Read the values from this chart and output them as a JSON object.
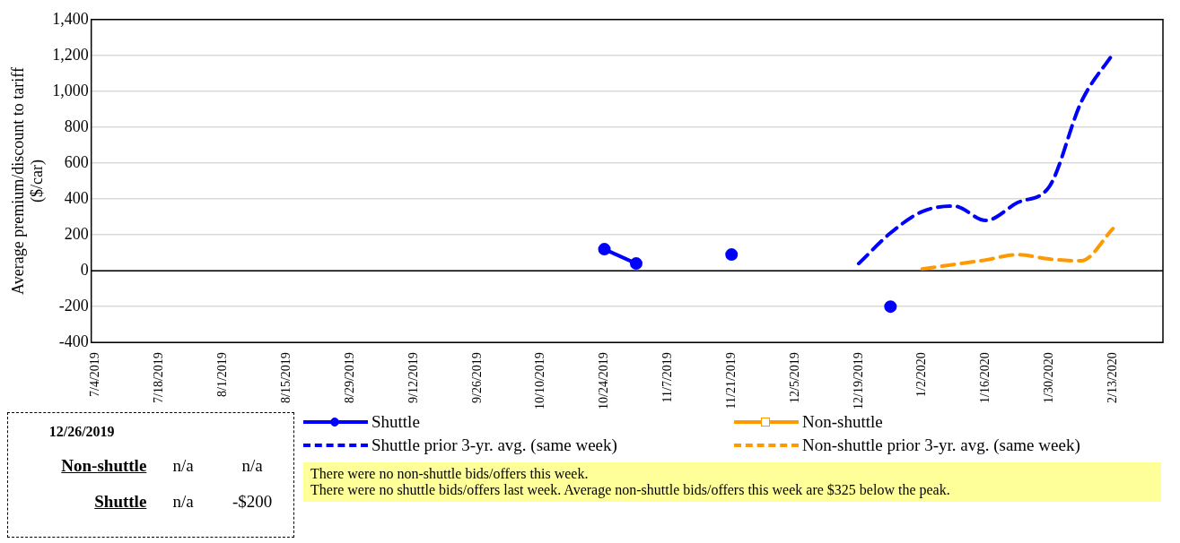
{
  "chart_data": [
    {
      "type": "line",
      "ylabel": "Average premium/discount to tariff ($/car)",
      "x": [
        "2019-10-24",
        "2019-10-31",
        "2019-11-07",
        "2019-11-14",
        "2019-11-21",
        "2019-11-28",
        "2019-12-05",
        "2019-12-12",
        "2019-12-19",
        "2019-12-26",
        "2020-01-02",
        "2020-01-09",
        "2020-01-16",
        "2020-01-23",
        "2020-01-30",
        "2020-02-06",
        "2020-02-13"
      ],
      "series": [
        {
          "name": "Shuttle",
          "color": "#0000ff",
          "marker": "circle",
          "line_style": "solid",
          "values": [
            120,
            40,
            null,
            null,
            90,
            null,
            null,
            null,
            null,
            -200,
            null,
            null,
            null,
            null,
            null,
            null,
            null
          ]
        },
        {
          "name": "Non-shuttle",
          "color": "#ff9900",
          "marker": "square",
          "line_style": "solid",
          "values": [
            null,
            null,
            null,
            null,
            null,
            null,
            null,
            null,
            null,
            null,
            null,
            null,
            null,
            null,
            null,
            null,
            null
          ]
        },
        {
          "name": "Shuttle prior 3-yr. avg. (same week)",
          "color": "#0000ff",
          "marker": "none",
          "line_style": "dashed",
          "values": [
            null,
            null,
            null,
            null,
            null,
            null,
            null,
            null,
            40,
            210,
            330,
            360,
            280,
            380,
            470,
            940,
            1210
          ]
        },
        {
          "name": "Non-shuttle prior 3-yr. avg. (same week)",
          "color": "#ff9900",
          "marker": "none",
          "line_style": "dashed",
          "values": [
            null,
            null,
            null,
            null,
            null,
            null,
            null,
            null,
            null,
            null,
            10,
            35,
            60,
            90,
            65,
            55,
            235
          ]
        }
      ],
      "xlim": [
        "2019-07-03",
        "2020-02-24"
      ],
      "xticks": [
        {
          "value": "2019-07-04",
          "label": "7/4/2019"
        },
        {
          "value": "2019-07-18",
          "label": "7/18/2019"
        },
        {
          "value": "2019-08-01",
          "label": "8/1/2019"
        },
        {
          "value": "2019-08-15",
          "label": "8/15/2019"
        },
        {
          "value": "2019-08-29",
          "label": "8/29/2019"
        },
        {
          "value": "2019-09-12",
          "label": "9/12/2019"
        },
        {
          "value": "2019-09-26",
          "label": "9/26/2019"
        },
        {
          "value": "2019-10-10",
          "label": "10/10/2019"
        },
        {
          "value": "2019-10-24",
          "label": "10/24/2019"
        },
        {
          "value": "2019-11-07",
          "label": "11/7/2019"
        },
        {
          "value": "2019-11-21",
          "label": "11/21/2019"
        },
        {
          "value": "2019-12-05",
          "label": "12/5/2019"
        },
        {
          "value": "2019-12-19",
          "label": "12/19/2019"
        },
        {
          "value": "2020-01-02",
          "label": "1/2/2020"
        },
        {
          "value": "2020-01-16",
          "label": "1/16/2020"
        },
        {
          "value": "2020-01-30",
          "label": "1/30/2020"
        },
        {
          "value": "2020-02-13",
          "label": "2/13/2020"
        }
      ],
      "ylim": [
        -400,
        1400
      ],
      "yticks": [
        {
          "value": -400,
          "label": "-400"
        },
        {
          "value": -200,
          "label": "-200"
        },
        {
          "value": 0,
          "label": "0"
        },
        {
          "value": 200,
          "label": "200"
        },
        {
          "value": 400,
          "label": "400"
        },
        {
          "value": 600,
          "label": "600"
        },
        {
          "value": 800,
          "label": "800"
        },
        {
          "value": 1000,
          "label": "1,000"
        },
        {
          "value": 1200,
          "label": "1,200"
        },
        {
          "value": 1400,
          "label": "1,400"
        }
      ],
      "grid": "y",
      "legend": "bottom",
      "ref_lines": [
        {
          "axis": "y",
          "value": 0,
          "color": "#000000"
        }
      ],
      "annotations": [
        "There were no non-shuttle bids/offers  this week.",
        "There were no shuttle bids/offers  last week. Average  non-shuttle bids/offers  this week are $325 below the peak."
      ]
    },
    {
      "type": "other",
      "title": "12/26/2019",
      "categories": [
        null,
        null
      ],
      "y_categories": [
        "Non-shuttle",
        "Shuttle"
      ],
      "cell_labels": [
        [
          "n/a",
          "n/a"
        ],
        [
          "n/a",
          "-$200"
        ]
      ]
    }
  ]
}
